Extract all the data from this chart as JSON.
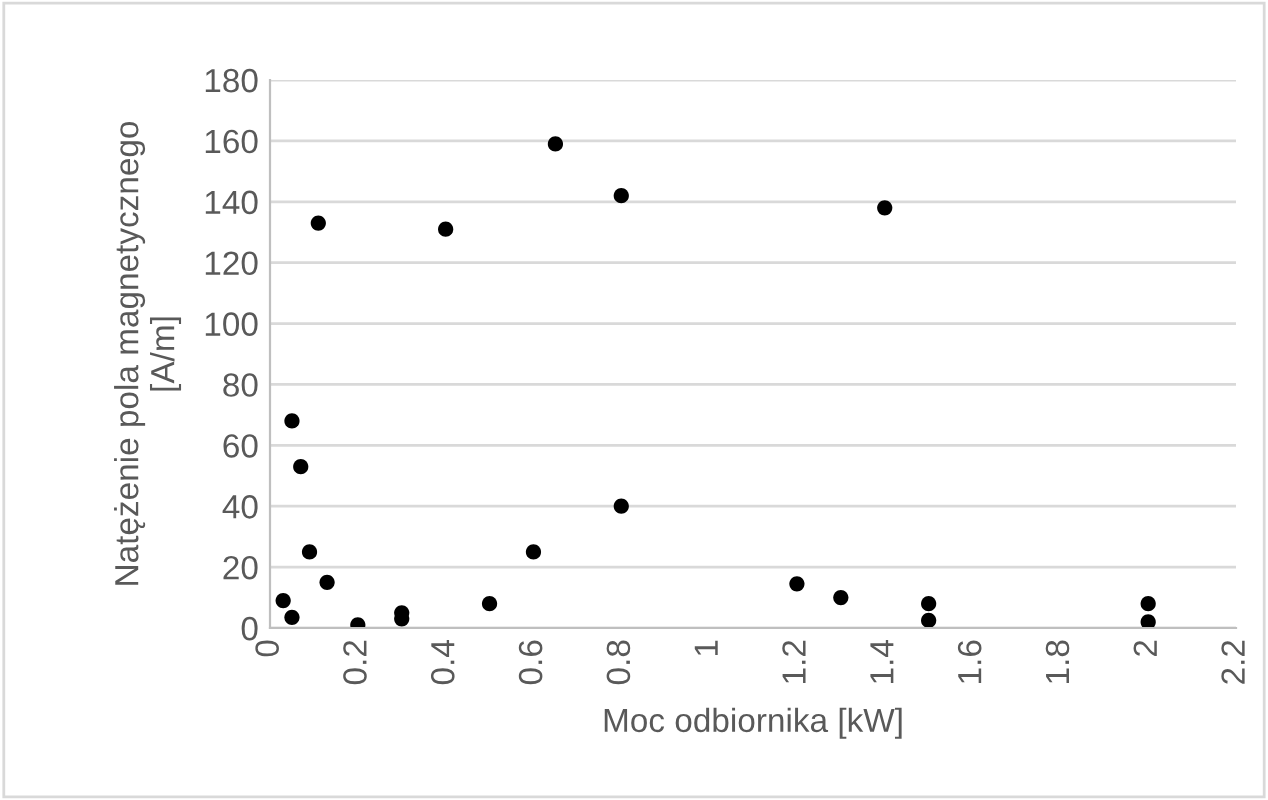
{
  "chart_data": {
    "type": "scatter",
    "xlabel": "Moc odbiornika [kW]",
    "ylabel": "Natężenie pola magnetycznego\n[A/m]",
    "x": [
      0.03,
      0.05,
      0.05,
      0.07,
      0.09,
      0.11,
      0.13,
      0.2,
      0.3,
      0.3,
      0.4,
      0.5,
      0.6,
      0.65,
      0.8,
      0.8,
      1.2,
      1.3,
      1.4,
      1.5,
      1.5,
      2,
      2
    ],
    "series": [
      {
        "color": "#000000",
        "values": [
          9,
          3.5,
          68,
          53,
          25,
          133,
          15,
          1,
          3,
          5,
          131,
          8,
          25,
          159,
          142,
          40,
          14.5,
          10,
          138,
          8,
          2.5,
          8,
          2
        ]
      }
    ],
    "xlim": [
      0,
      2.2
    ],
    "xticks": [
      0,
      0.2,
      0.4,
      0.6,
      0.8,
      1,
      1.2,
      1.4,
      1.6,
      1.8,
      2,
      2.2
    ],
    "ylim": [
      0,
      180
    ],
    "yticks": [
      0,
      20,
      40,
      60,
      80,
      100,
      120,
      140,
      160,
      180
    ],
    "grid": "y",
    "marker": "circle",
    "legend": false
  }
}
